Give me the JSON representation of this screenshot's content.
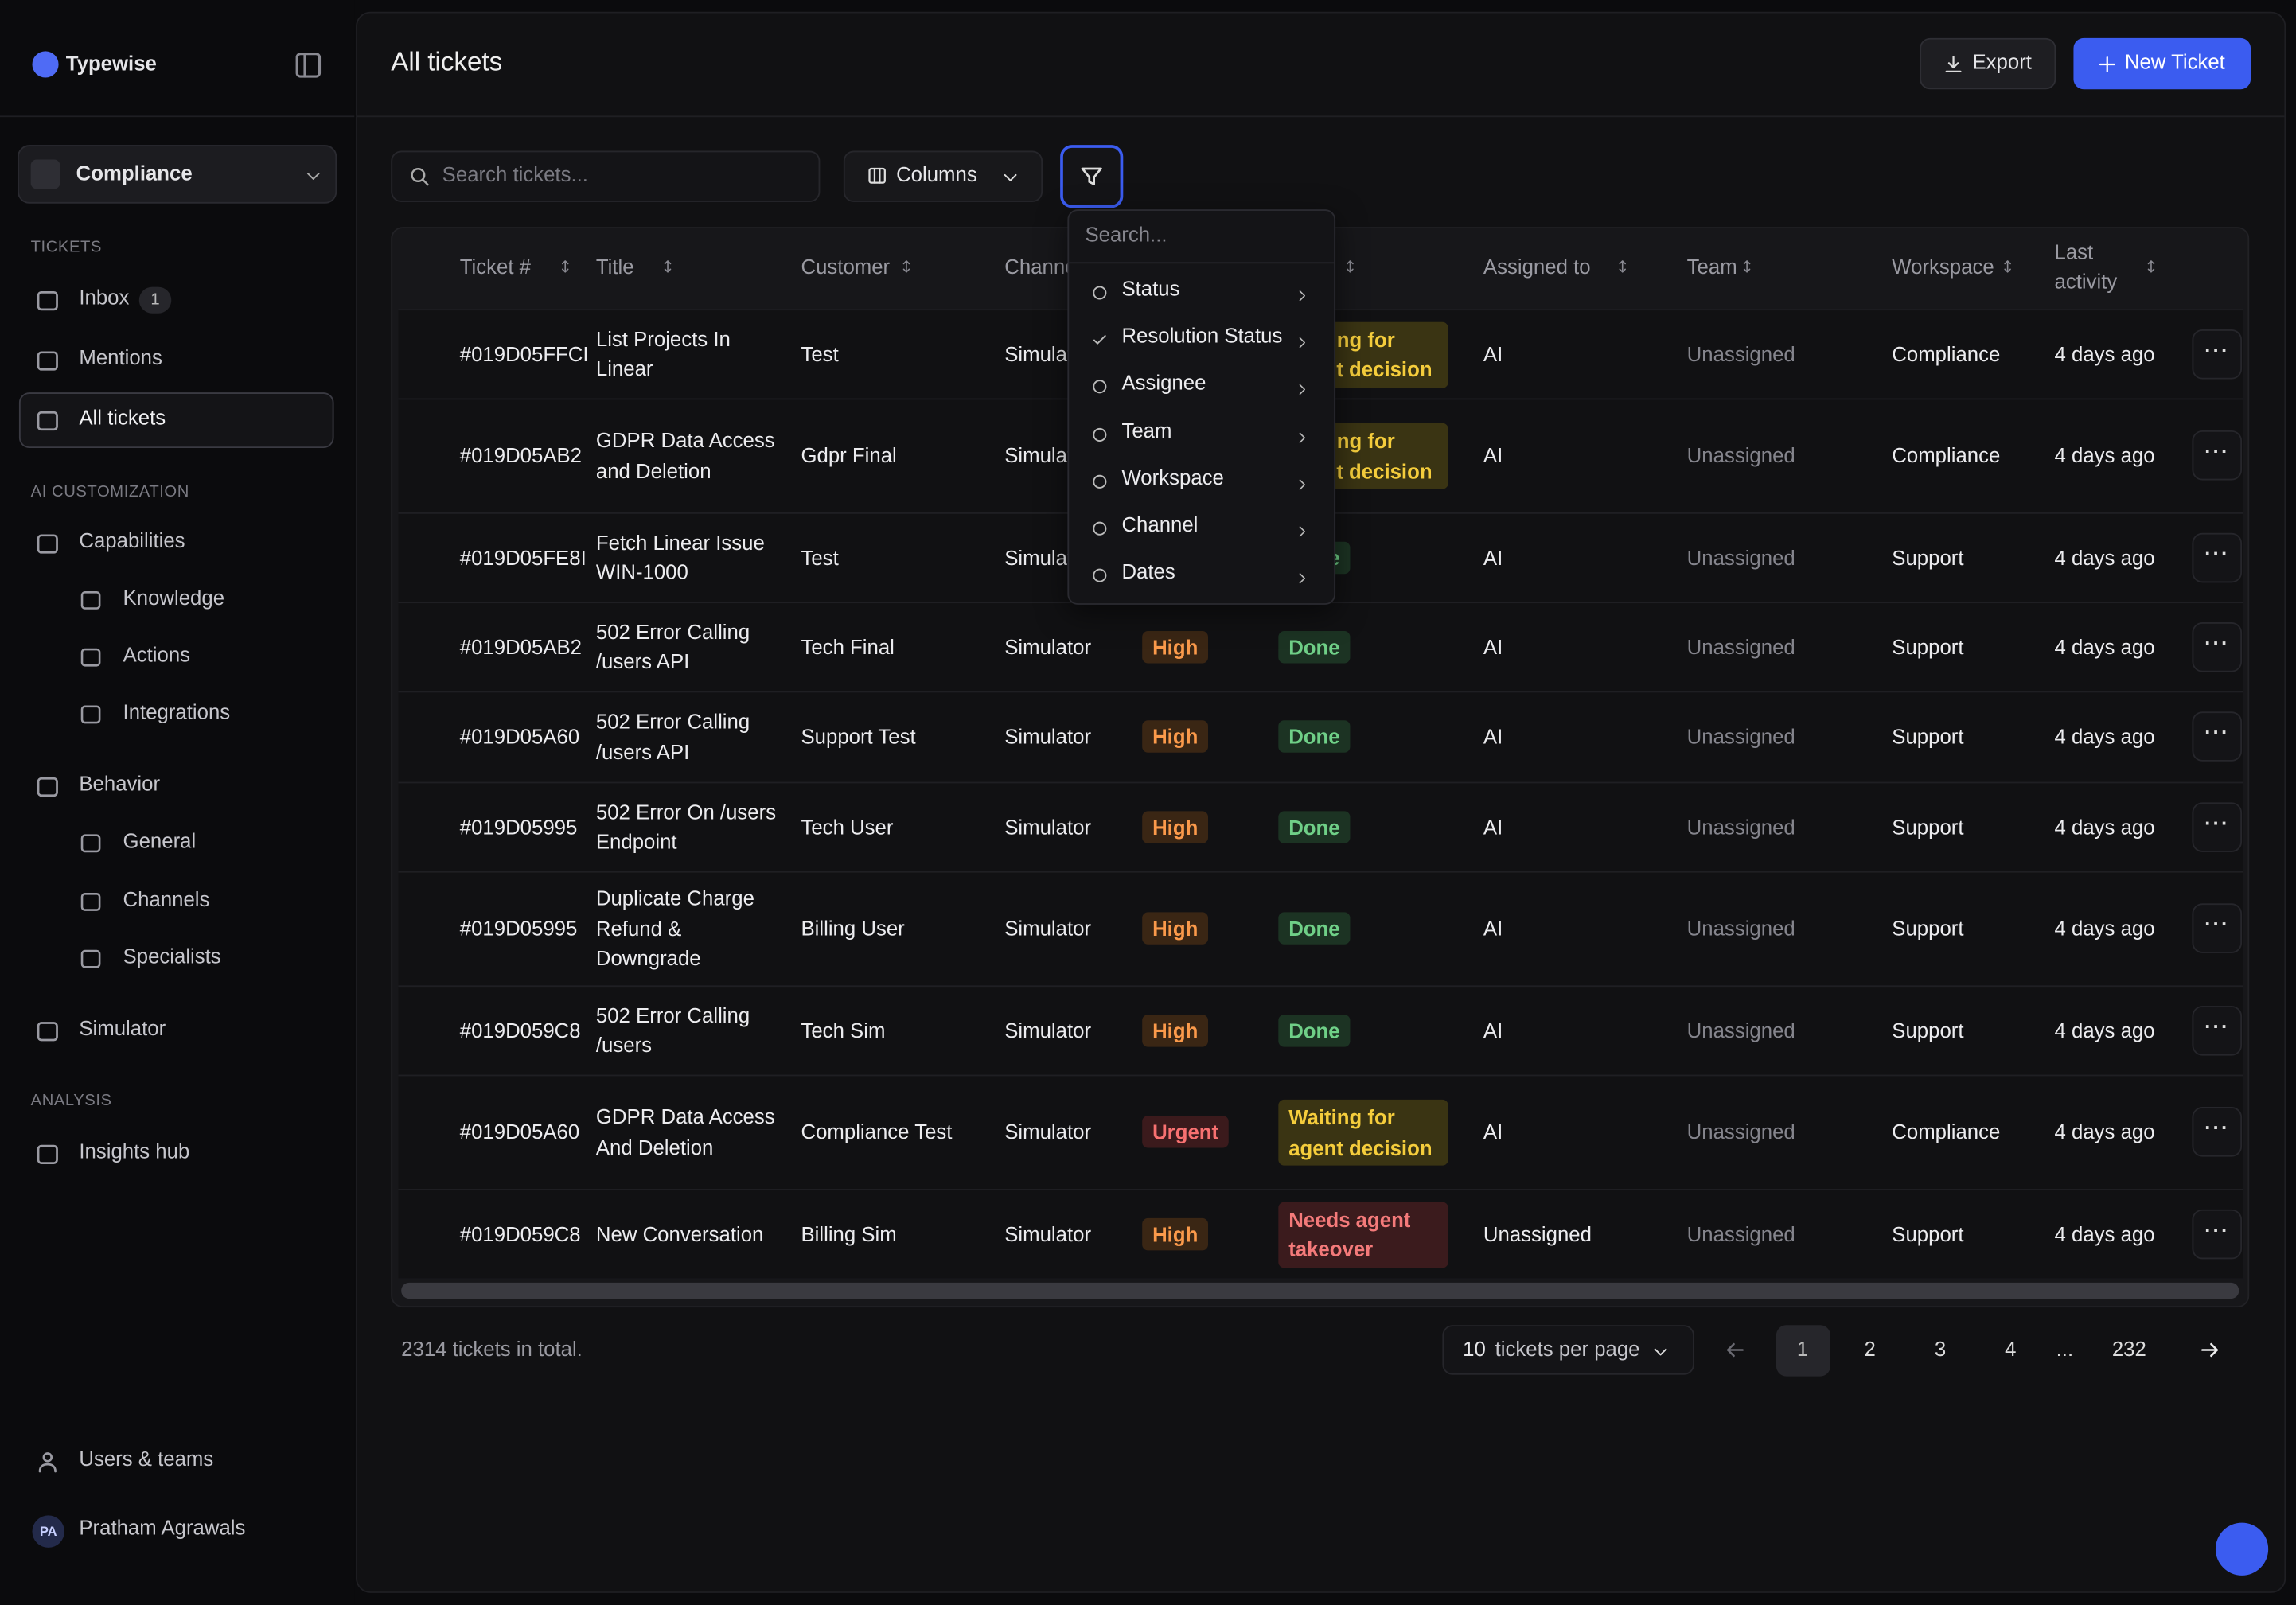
{
  "sidebar": {
    "brand": "Typewise",
    "workspace": "Compliance",
    "sections": [
      {
        "label": "TICKETS",
        "items": [
          {
            "label": "Inbox",
            "badge": "1"
          },
          {
            "label": "Mentions"
          },
          {
            "label": "All tickets",
            "selected": true
          }
        ]
      },
      {
        "label": "AI CUSTOMIZATION",
        "items": [
          {
            "label": "Capabilities",
            "children": [
              "Knowledge",
              "Actions",
              "Integrations"
            ]
          },
          {
            "label": "Behavior",
            "children": [
              "General",
              "Channels",
              "Specialists"
            ]
          },
          {
            "label": "Simulator"
          }
        ]
      },
      {
        "label": "ANALYSIS",
        "items": [
          {
            "label": "Insights hub"
          }
        ]
      }
    ],
    "footer": {
      "users": "Users & teams",
      "initials": "PA",
      "name": "Pratham Agrawals"
    }
  },
  "header": {
    "title": "All tickets",
    "export": "Export",
    "new_ticket": "New Ticket"
  },
  "toolbar": {
    "search": "Search tickets...",
    "columns": "Columns"
  },
  "filter_menu": {
    "search": "Search...",
    "items": [
      {
        "label": "Status"
      },
      {
        "label": "Resolution Status",
        "checked": true
      },
      {
        "label": "Assignee"
      },
      {
        "label": "Team"
      },
      {
        "label": "Workspace"
      },
      {
        "label": "Channel"
      },
      {
        "label": "Dates"
      }
    ]
  },
  "table": {
    "headers": [
      "Ticket #",
      "Title",
      "Customer",
      "Channel",
      null,
      null,
      "Assigned to",
      "Team",
      "Workspace",
      "Last activity"
    ],
    "rows": [
      [
        "#019D05FFCI",
        "List Projects In Linear",
        "Test",
        "Simulator",
        null,
        "Waiting for agent decision",
        "AI",
        "Unassigned",
        "Compliance",
        "4 days ago"
      ],
      [
        "#019D05AB2",
        "GDPR Data Access and Deletion",
        "Gdpr Final",
        "Simulator",
        null,
        "Waiting for agent decision",
        "AI",
        "Unassigned",
        "Compliance",
        "4 days ago"
      ],
      [
        "#019D05FE8I",
        "Fetch Linear Issue WIN-1000",
        "Test",
        "Simulator",
        null,
        "Done",
        "AI",
        "Unassigned",
        "Support",
        "4 days ago"
      ],
      [
        "#019D05AB2",
        "502 Error Calling /users API",
        "Tech Final",
        "Simulator",
        "High",
        "Done",
        "AI",
        "Unassigned",
        "Support",
        "4 days ago"
      ],
      [
        "#019D05A60",
        "502 Error Calling /users API",
        "Support Test",
        "Simulator",
        "High",
        "Done",
        "AI",
        "Unassigned",
        "Support",
        "4 days ago"
      ],
      [
        "#019D05995",
        "502 Error On /users Endpoint",
        "Tech User",
        "Simulator",
        "High",
        "Done",
        "AI",
        "Unassigned",
        "Support",
        "4 days ago"
      ],
      [
        "#019D05995",
        "Duplicate Charge Refund & Downgrade",
        "Billing User",
        "Simulator",
        "High",
        "Done",
        "AI",
        "Unassigned",
        "Support",
        "4 days ago"
      ],
      [
        "#019D059C8",
        "502 Error Calling /users",
        "Tech Sim",
        "Simulator",
        "High",
        "Done",
        "AI",
        "Unassigned",
        "Support",
        "4 days ago"
      ],
      [
        "#019D05A60",
        "GDPR Data Access And Deletion",
        "Compliance Test",
        "Simulator",
        "Urgent",
        "Waiting for agent decision",
        "AI",
        "Unassigned",
        "Compliance",
        "4 days ago"
      ],
      [
        "#019D059C8",
        "New Conversation",
        "Billing Sim",
        "Simulator",
        "High",
        "Needs agent takeover",
        "Unassigned",
        "Unassigned",
        "Support",
        "4 days ago"
      ]
    ]
  },
  "footer": {
    "total": "2314 tickets in total.",
    "per_page_value": "10",
    "per_page_label": "tickets per page",
    "pages": [
      "1",
      "2",
      "3",
      "4",
      "...",
      "232"
    ],
    "active_page": "1"
  }
}
